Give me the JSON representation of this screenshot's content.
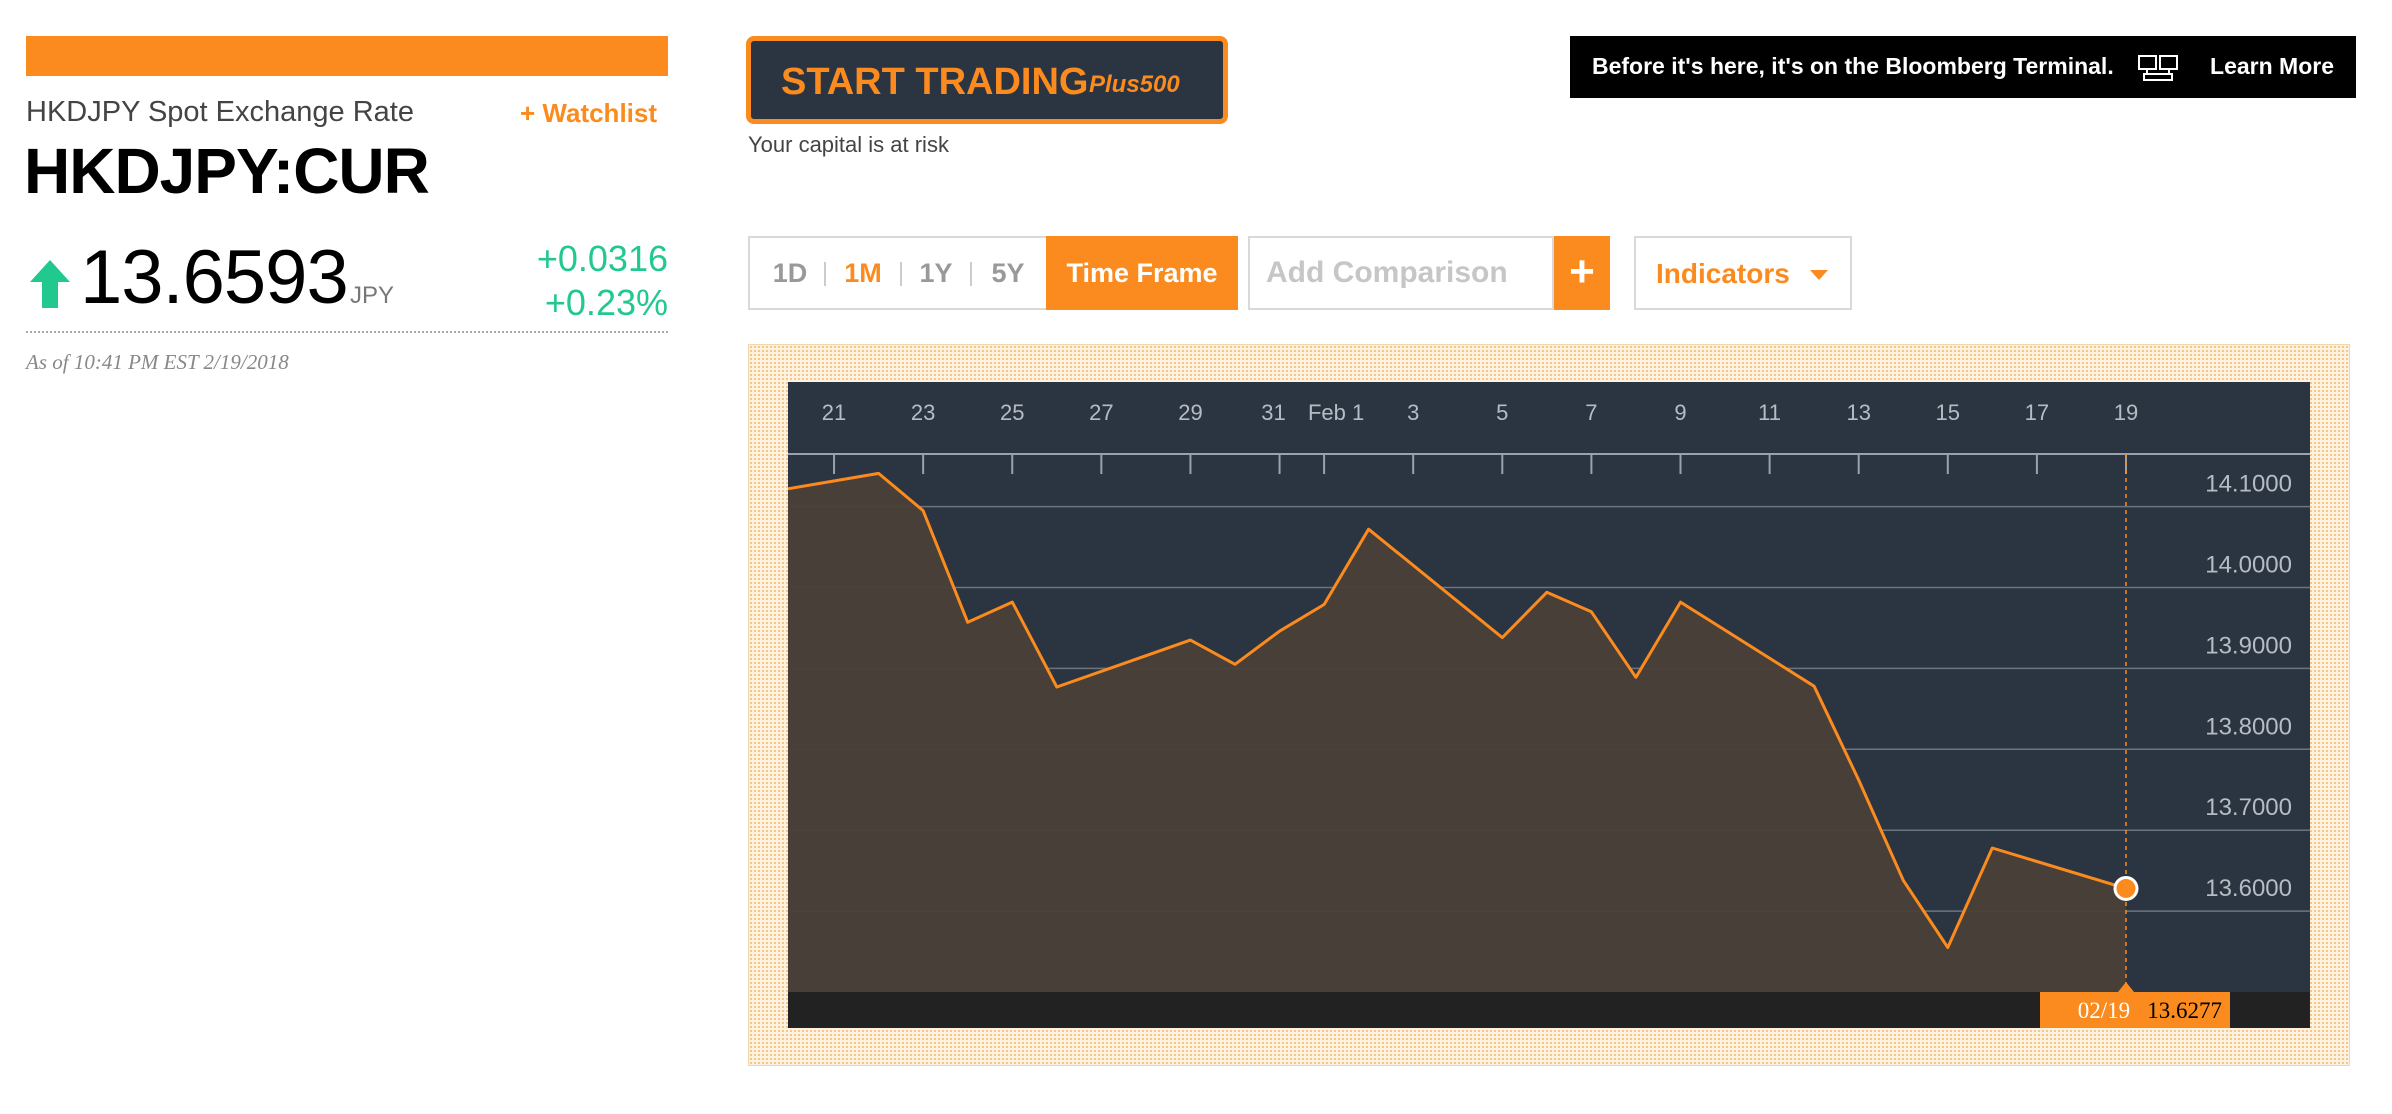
{
  "quote": {
    "name": "HKDJPY Spot Exchange Rate",
    "watchlist_label": "+ Watchlist",
    "ticker": "HKDJPY:CUR",
    "price": "13.6593",
    "currency": "JPY",
    "direction_icon": "up-arrow-icon",
    "change_abs": "+0.0316",
    "change_pct": "+0.23%",
    "as_of": "As of 10:41 PM EST 2/19/2018"
  },
  "ad": {
    "button_label": "START TRADING",
    "brand": "Plus500",
    "disclaimer": "Your capital is at risk"
  },
  "banner": {
    "text": "Before it's here, it's on the Bloomberg Terminal.",
    "icon": "terminal-icon",
    "link_label": "Learn More"
  },
  "controls": {
    "ranges": [
      "1D",
      "1M",
      "1Y",
      "5Y"
    ],
    "active_range": "1M",
    "time_frame_label": "Time Frame",
    "comparison_placeholder": "Add Comparison",
    "comparison_add_label": "+",
    "indicators_label": "Indicators"
  },
  "colors": {
    "accent": "#fb8b1e",
    "up": "#22c98e",
    "chart_bg": "#2b3441",
    "chart_area": "#4a4039"
  },
  "chart_data": {
    "type": "area",
    "x_tick_labels": [
      "21",
      "23",
      "25",
      "27",
      "29",
      "31",
      "Feb 1",
      "3",
      "5",
      "7",
      "9",
      "11",
      "13",
      "15",
      "17",
      "19"
    ],
    "y_tick_labels": [
      "14.1000",
      "14.0000",
      "13.9000",
      "13.8000",
      "13.7000",
      "13.6000"
    ],
    "ylim": [
      13.5,
      14.165
    ],
    "grid": true,
    "dates": [
      "2018-01-19",
      "2018-01-22",
      "2018-01-23",
      "2018-01-24",
      "2018-01-25",
      "2018-01-26",
      "2018-01-29",
      "2018-01-30",
      "2018-01-31",
      "2018-02-01",
      "2018-02-02",
      "2018-02-05",
      "2018-02-06",
      "2018-02-07",
      "2018-02-08",
      "2018-02-09",
      "2018-02-12",
      "2018-02-13",
      "2018-02-14",
      "2018-02-15",
      "2018-02-16",
      "2018-02-19"
    ],
    "values": [
      14.122,
      14.141,
      14.095,
      13.957,
      13.982,
      13.877,
      13.935,
      13.905,
      13.946,
      13.979,
      14.072,
      13.938,
      13.994,
      13.97,
      13.889,
      13.982,
      13.878,
      13.762,
      13.638,
      13.555,
      13.678,
      13.628
    ],
    "crosshair": {
      "date_label": "02/19",
      "value_label": "13.6277"
    }
  }
}
